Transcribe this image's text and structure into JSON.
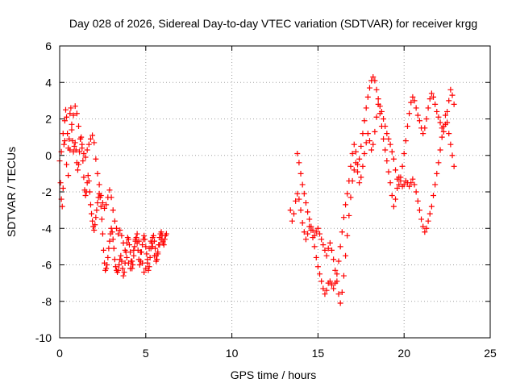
{
  "chart_data": {
    "type": "scatter",
    "title": "Day 028 of 2026, Sidereal Day-to-day VTEC variation (SDTVAR) for receiver krgg",
    "xlabel": "GPS time / hours",
    "ylabel": "SDTVAR / TECUs",
    "xlim": [
      0,
      25
    ],
    "ylim": [
      -10,
      6
    ],
    "xticks": [
      0,
      5,
      10,
      15,
      20,
      25
    ],
    "yticks": [
      -10,
      -8,
      -6,
      -4,
      -2,
      0,
      2,
      4,
      6
    ],
    "grid": true,
    "marker": "+",
    "colors": {
      "series": "#ff0000",
      "grid": "#a0a0a0",
      "axes": "#000000"
    },
    "series": [
      {
        "name": "SDTVAR",
        "segments": [
          {
            "x": [
              0.0,
              0.05,
              0.1,
              0.15,
              0.2,
              0.25,
              0.3,
              0.35,
              0.4,
              0.45,
              0.5,
              0.55,
              0.6,
              0.65,
              0.7,
              0.75,
              0.8,
              0.85,
              0.9,
              0.95,
              1.0,
              1.05,
              1.1,
              1.15,
              1.2,
              1.25,
              1.3,
              1.35,
              1.4,
              1.45,
              1.5,
              1.55,
              1.6,
              1.65,
              1.7,
              1.75,
              1.8,
              1.85,
              1.9,
              1.95,
              2.0,
              2.05,
              2.1,
              2.15,
              2.2,
              2.25,
              2.3,
              2.35,
              2.4,
              2.45,
              2.5,
              2.55,
              2.6,
              2.65,
              2.7,
              2.75,
              2.8,
              2.85,
              2.9,
              2.95,
              3.0,
              3.05,
              3.1,
              3.15,
              3.2,
              3.25,
              3.3,
              3.35,
              3.4,
              3.45,
              3.5,
              3.55,
              3.6,
              3.65,
              3.7,
              3.75,
              3.8,
              3.85,
              3.9,
              3.95,
              4.0,
              4.05,
              4.1,
              4.15,
              4.2,
              4.25,
              4.3,
              4.35,
              4.4,
              4.45,
              4.5,
              4.55,
              4.6,
              4.65,
              4.7,
              4.75,
              4.8,
              4.85,
              4.9,
              4.95,
              5.0,
              5.05,
              5.1,
              5.15,
              5.2,
              5.25,
              5.3,
              5.35,
              5.4,
              5.45,
              5.5,
              5.55,
              5.6,
              5.65,
              5.7,
              5.75,
              5.8,
              5.85,
              5.9,
              5.95,
              6.0,
              6.05,
              6.1,
              6.15,
              6.2
            ],
            "y": [
              -0.3,
              -1.5,
              -2.4,
              -2.8,
              -1.8,
              0.6,
              1.9,
              2.5,
              2.1,
              1.2,
              0.4,
              0.9,
              2.3,
              2.6,
              1.7,
              0.8,
              0.2,
              0.5,
              0.7,
              0.3,
              -0.4,
              -0.8,
              -0.5,
              0.2,
              0.9,
              1.0,
              0.6,
              -0.3,
              -1.2,
              -1.9,
              -2.2,
              -2.0,
              -1.5,
              -1.1,
              -1.4,
              -2.0,
              -2.7,
              -3.2,
              -3.6,
              -3.9,
              -4.1,
              -3.8,
              -3.4,
              -3.0,
              -2.6,
              -2.3,
              -2.1,
              -2.3,
              -2.8,
              -3.5,
              -4.3,
              -5.2,
              -5.9,
              -6.3,
              -6.2,
              -6.0,
              -5.6,
              -5.1,
              -4.7,
              -4.3,
              -4.0,
              -4.2,
              -4.6,
              -5.1,
              -5.7,
              -6.1,
              -6.3,
              -6.4,
              -6.3,
              -6.0,
              -5.7,
              -5.5,
              -5.8,
              -6.2,
              -6.6,
              -6.4,
              -5.9,
              -5.3,
              -4.8,
              -4.5,
              -4.6,
              -4.9,
              -5.3,
              -5.8,
              -6.2,
              -6.0,
              -5.5,
              -5.0,
              -4.7,
              -4.5,
              -4.8,
              -5.2,
              -5.7,
              -6.0,
              -5.8,
              -5.3,
              -4.9,
              -4.6,
              -4.4,
              -4.6,
              -5.0,
              -5.4,
              -5.9,
              -6.3,
              -6.1,
              -5.6,
              -5.1,
              -4.8,
              -4.5,
              -4.4,
              -4.7,
              -5.1,
              -5.5,
              -5.7,
              -5.3,
              -4.9,
              -4.5,
              -4.3,
              -4.2,
              -4.4,
              -4.7,
              -4.9,
              -4.6,
              -4.4,
              -4.3
            ]
          },
          {
            "x": [
              0.1,
              0.2,
              0.3,
              0.4,
              0.5,
              0.6,
              0.7,
              0.8,
              0.9,
              1.0,
              1.1,
              1.2,
              1.3,
              1.4,
              1.5,
              1.6,
              1.7,
              1.8,
              1.9,
              2.0,
              2.1,
              2.2,
              2.3,
              2.4,
              2.5,
              2.6,
              2.7,
              2.8,
              2.9,
              3.0,
              3.1,
              3.2,
              3.3,
              3.4,
              3.5,
              3.6,
              3.7,
              3.8,
              3.9,
              4.0,
              4.1,
              4.2,
              4.3,
              4.4,
              4.5,
              4.6,
              4.7,
              4.8,
              4.9,
              5.0,
              5.1,
              5.2,
              5.3,
              5.4,
              5.5,
              5.6,
              5.7,
              5.8,
              5.9,
              6.0
            ],
            "y": [
              0.2,
              1.2,
              0.8,
              -0.5,
              -1.1,
              0.3,
              1.4,
              2.2,
              2.7,
              2.3,
              1.6,
              0.9,
              0.4,
              0.1,
              -0.1,
              0.3,
              0.6,
              0.9,
              1.1,
              0.7,
              -0.2,
              -1.0,
              -1.6,
              -2.2,
              -2.6,
              -2.9,
              -2.7,
              -2.3,
              -1.9,
              -2.3,
              -3.0,
              -3.6,
              -4.0,
              -4.3,
              -4.1,
              -4.4,
              -4.8,
              -5.2,
              -5.6,
              -5.9,
              -6.2,
              -5.8,
              -5.2,
              -4.6,
              -4.3,
              -4.7,
              -5.3,
              -5.9,
              -6.4,
              -6.2,
              -5.7,
              -5.1,
              -4.7,
              -5.0,
              -5.5,
              -5.8,
              -5.4,
              -4.9,
              -4.6,
              -4.8
            ]
          },
          {
            "x": [
              13.4,
              13.5,
              13.6,
              13.7,
              13.8,
              13.9,
              14.0,
              14.1,
              14.2,
              14.3,
              14.4,
              14.5,
              14.6,
              14.7,
              14.8,
              14.9,
              15.0,
              15.1,
              15.2,
              15.3,
              15.4,
              15.5,
              15.6,
              15.7,
              15.8,
              15.9,
              16.0,
              16.1,
              16.2,
              16.3,
              16.4,
              16.5,
              16.6,
              16.7,
              16.8,
              16.9,
              17.0,
              17.1,
              17.2,
              17.3,
              17.4,
              17.5,
              17.6,
              17.7,
              17.8,
              17.9,
              18.0,
              18.1,
              18.2,
              18.3,
              18.4,
              18.5,
              18.6,
              18.7,
              18.8,
              18.9,
              19.0,
              19.1,
              19.2,
              19.3,
              19.4,
              19.5,
              19.6,
              19.7,
              19.8,
              19.9,
              20.0,
              20.1,
              20.2,
              20.3,
              20.4,
              20.5,
              20.6,
              20.7,
              20.8,
              20.9,
              21.0,
              21.1,
              21.2,
              21.3,
              21.4,
              21.5,
              21.6,
              21.7,
              21.8,
              21.9,
              22.0,
              22.1,
              22.2,
              22.3,
              22.4,
              22.5,
              22.6,
              22.7,
              22.8,
              22.9
            ],
            "y": [
              -3.0,
              -3.6,
              -3.2,
              -2.5,
              -2.1,
              -2.4,
              -3.0,
              -3.7,
              -4.2,
              -4.6,
              -4.3,
              -3.9,
              -4.1,
              -4.5,
              -5.0,
              -5.6,
              -6.1,
              -6.5,
              -6.9,
              -7.3,
              -7.6,
              -7.4,
              -7.0,
              -6.9,
              -7.1,
              -7.3,
              -7.0,
              -6.5,
              -5.8,
              -5.0,
              -4.2,
              -3.4,
              -2.7,
              -2.1,
              -1.4,
              -0.6,
              0.1,
              0.6,
              0.2,
              -0.5,
              -0.2,
              0.5,
              1.2,
              1.9,
              2.6,
              3.2,
              3.7,
              4.1,
              4.3,
              4.1,
              3.6,
              3.1,
              2.7,
              2.4,
              2.0,
              1.6,
              1.2,
              0.9,
              0.6,
              0.2,
              -0.2,
              -0.8,
              -1.3,
              -1.6,
              -1.2,
              -0.6,
              0.1,
              0.8,
              1.6,
              2.3,
              2.9,
              3.2,
              3.0,
              2.6,
              2.2,
              1.9,
              1.5,
              1.2,
              1.5,
              2.0,
              2.6,
              3.1,
              3.4,
              3.2,
              2.8,
              2.4,
              2.1,
              1.8,
              1.5,
              1.3,
              1.7,
              2.4,
              3.0,
              3.6,
              3.3,
              2.8
            ]
          },
          {
            "x": [
              13.8,
              13.9,
              14.0,
              14.1,
              14.2,
              14.3,
              14.4,
              14.5,
              14.6,
              14.7,
              14.8,
              14.9,
              15.0,
              15.1,
              15.2,
              15.3,
              15.4,
              15.5,
              15.6,
              15.7,
              15.8,
              15.9,
              16.0,
              16.1,
              16.2,
              16.3,
              16.4,
              16.5,
              16.6,
              16.7,
              16.8,
              16.9,
              17.0,
              17.1,
              17.2,
              17.3,
              17.4,
              17.5,
              17.6,
              17.7,
              17.8,
              17.9,
              18.0,
              18.1,
              18.2,
              18.3,
              18.4,
              18.5,
              18.6,
              18.7,
              18.8,
              18.9,
              19.0,
              19.1,
              19.2,
              19.3,
              19.4,
              19.5,
              19.6,
              19.7,
              19.8,
              19.9,
              20.0,
              20.1,
              20.2,
              20.3,
              20.4,
              20.5,
              20.6,
              20.7,
              20.8,
              20.9,
              21.0,
              21.1,
              21.2,
              21.3,
              21.4,
              21.5,
              21.6,
              21.7,
              21.8,
              21.9,
              22.0,
              22.1,
              22.2,
              22.3,
              22.4,
              22.5,
              22.6,
              22.7,
              22.8,
              22.9
            ],
            "y": [
              0.1,
              -0.4,
              -1.0,
              -1.6,
              -2.1,
              -2.6,
              -3.1,
              -3.5,
              -3.9,
              -4.1,
              -4.4,
              -4.2,
              -4.0,
              -4.3,
              -4.6,
              -4.9,
              -5.2,
              -5.5,
              -5.1,
              -4.8,
              -5.2,
              -5.7,
              -6.3,
              -6.9,
              -7.6,
              -8.1,
              -7.5,
              -6.6,
              -5.5,
              -4.4,
              -3.3,
              -2.3,
              -1.4,
              -0.8,
              -0.4,
              -0.9,
              -1.5,
              -1.2,
              -0.6,
              0.1,
              0.7,
              1.2,
              0.8,
              0.3,
              0.6,
              1.3,
              2.1,
              2.8,
              2.3,
              1.6,
              0.9,
              0.3,
              -0.3,
              -0.9,
              -1.5,
              -2.2,
              -2.8,
              -2.4,
              -1.8,
              -1.2,
              -1.4,
              -1.7,
              -1.6,
              -1.4,
              -1.5,
              -1.7,
              -1.5,
              -1.3,
              -1.6,
              -2.0,
              -2.5,
              -3.0,
              -3.5,
              -3.9,
              -4.2,
              -4.0,
              -3.6,
              -3.2,
              -2.8,
              -2.2,
              -1.6,
              -1.0,
              -0.4,
              0.3,
              1.0,
              1.6,
              2.2,
              1.8,
              1.2,
              0.6,
              0.0,
              -0.6
            ]
          }
        ]
      }
    ]
  }
}
